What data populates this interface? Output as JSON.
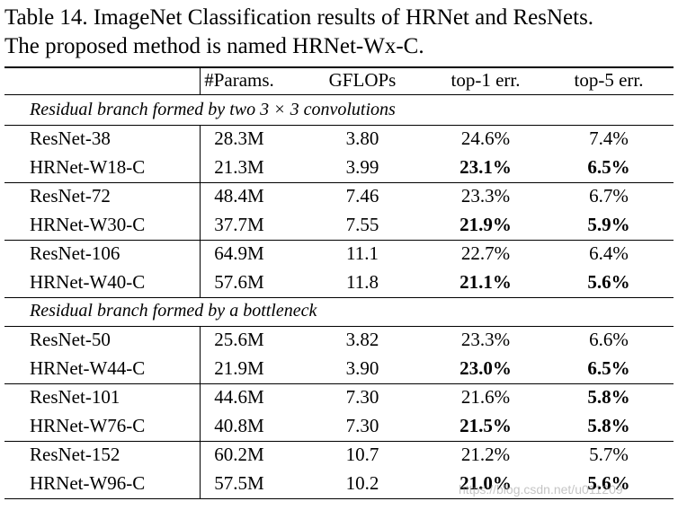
{
  "caption": {
    "line1": "Table 14. ImageNet Classification results of HRNet and ResNets.",
    "line2": "The proposed method is named HRNet-Wx-C."
  },
  "header": [
    "#Params.",
    "GFLOPs",
    "top-1 err.",
    "top-5 err."
  ],
  "sections": [
    {
      "title": "Residual branch formed by two 3 × 3 convolutions",
      "groups": [
        [
          {
            "model": "ResNet-38",
            "params": "28.3M",
            "gflops": "3.80",
            "top1": "24.6%",
            "top5": "7.4%",
            "top1_bold": false,
            "top5_bold": false
          },
          {
            "model": "HRNet-W18-C",
            "params": "21.3M",
            "gflops": "3.99",
            "top1": "23.1%",
            "top5": "6.5%",
            "top1_bold": true,
            "top5_bold": true
          }
        ],
        [
          {
            "model": "ResNet-72",
            "params": "48.4M",
            "gflops": "7.46",
            "top1": "23.3%",
            "top5": "6.7%",
            "top1_bold": false,
            "top5_bold": false
          },
          {
            "model": "HRNet-W30-C",
            "params": "37.7M",
            "gflops": "7.55",
            "top1": "21.9%",
            "top5": "5.9%",
            "top1_bold": true,
            "top5_bold": true
          }
        ],
        [
          {
            "model": "ResNet-106",
            "params": "64.9M",
            "gflops": "11.1",
            "top1": "22.7%",
            "top5": "6.4%",
            "top1_bold": false,
            "top5_bold": false
          },
          {
            "model": "HRNet-W40-C",
            "params": "57.6M",
            "gflops": "11.8",
            "top1": "21.1%",
            "top5": "5.6%",
            "top1_bold": true,
            "top5_bold": true
          }
        ]
      ]
    },
    {
      "title": "Residual branch formed by a bottleneck",
      "groups": [
        [
          {
            "model": "ResNet-50",
            "params": "25.6M",
            "gflops": "3.82",
            "top1": "23.3%",
            "top5": "6.6%",
            "top1_bold": false,
            "top5_bold": false
          },
          {
            "model": "HRNet-W44-C",
            "params": "21.9M",
            "gflops": "3.90",
            "top1": "23.0%",
            "top5": "6.5%",
            "top1_bold": true,
            "top5_bold": true
          }
        ],
        [
          {
            "model": "ResNet-101",
            "params": "44.6M",
            "gflops": "7.30",
            "top1": "21.6%",
            "top5": "5.8%",
            "top1_bold": false,
            "top5_bold": true
          },
          {
            "model": "HRNet-W76-C",
            "params": "40.8M",
            "gflops": "7.30",
            "top1": "21.5%",
            "top5": "5.8%",
            "top1_bold": true,
            "top5_bold": true
          }
        ],
        [
          {
            "model": "ResNet-152",
            "params": "60.2M",
            "gflops": "10.7",
            "top1": "21.2%",
            "top5": "5.7%",
            "top1_bold": false,
            "top5_bold": false
          },
          {
            "model": "HRNet-W96-C",
            "params": "57.5M",
            "gflops": "10.2",
            "top1": "21.0%",
            "top5": "5.6%",
            "top1_bold": true,
            "top5_bold": true
          }
        ]
      ]
    }
  ],
  "watermark": "https://blog.csdn.net/u011209"
}
